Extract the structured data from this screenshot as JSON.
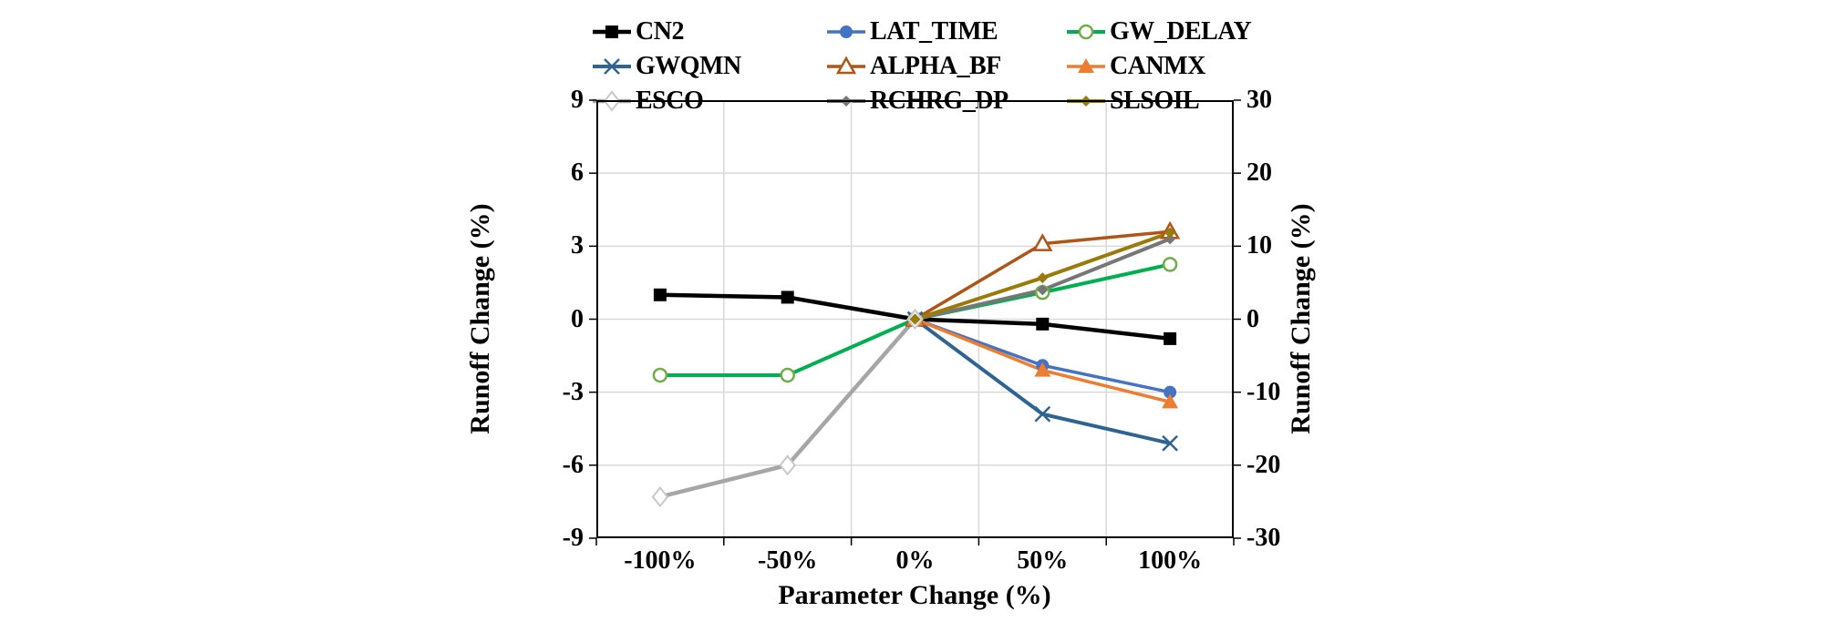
{
  "chart_data": {
    "type": "line",
    "categories": [
      "-100%",
      "-50%",
      "0%",
      "50%",
      "100%"
    ],
    "x_axis": {
      "title": "Parameter Change (%)",
      "tick_labels": [
        "-100%",
        "-50%",
        "0%",
        "50%",
        "100%"
      ]
    },
    "left_axis": {
      "title": "Runoff Change (%)",
      "ticks": [
        9,
        6,
        3,
        0,
        -3,
        -6,
        -9
      ],
      "range": [
        -9,
        9
      ]
    },
    "right_axis": {
      "title": "Runoff Change (%)",
      "ticks": [
        30,
        20,
        10,
        0,
        -10,
        -20,
        -30
      ],
      "range": [
        -30,
        30
      ]
    },
    "grid": true,
    "legend_position": "top",
    "series": [
      {
        "name": "CN2",
        "color": "#000000",
        "marker": "filled-square",
        "line_width": 4.5,
        "values": [
          1.0,
          0.9,
          0,
          -0.2,
          -0.8
        ]
      },
      {
        "name": "LAT_TIME",
        "color": "#4472C4",
        "marker": "filled-circle",
        "line_width": 3.5,
        "values": [
          null,
          null,
          0,
          -1.9,
          -3.0
        ]
      },
      {
        "name": "GW_DELAY",
        "color": "#00B050",
        "marker": "open-circle",
        "marker_color": "#70AD47",
        "line_width": 4,
        "values": [
          -2.3,
          -2.3,
          0,
          1.1,
          2.25
        ]
      },
      {
        "name": "GWQMN",
        "color": "#2E6494",
        "marker": "x",
        "line_width": 4,
        "values": [
          null,
          null,
          0,
          -3.9,
          -5.1
        ]
      },
      {
        "name": "ALPHA_BF",
        "color": "#B05517",
        "marker": "open-triangle",
        "line_width": 3.5,
        "values": [
          null,
          null,
          0,
          3.1,
          3.6
        ]
      },
      {
        "name": "CANMX",
        "color": "#ED7D31",
        "marker": "filled-triangle",
        "line_width": 3.5,
        "values": [
          null,
          null,
          0,
          -2.1,
          -3.4
        ]
      },
      {
        "name": "ESCO",
        "color": "#A6A6A6",
        "marker": "open-diamond",
        "marker_color": "#C8C8C8",
        "line_width": 4.5,
        "values": [
          -7.3,
          -6.0,
          0,
          null,
          null
        ]
      },
      {
        "name": "RCHRG_DP",
        "color": "#767676",
        "marker": "small-diamond",
        "line_width": 4,
        "values": [
          null,
          null,
          0,
          1.2,
          3.3
        ]
      },
      {
        "name": "SLSOIL",
        "color": "#9A7B0A",
        "marker": "small-diamond",
        "line_width": 4,
        "values": [
          null,
          null,
          0,
          1.7,
          3.55
        ]
      }
    ]
  },
  "colors": {
    "background": "#FFFFFF",
    "gridline": "#D9D9D9",
    "axis_line": "#000000",
    "text": "#000000"
  }
}
